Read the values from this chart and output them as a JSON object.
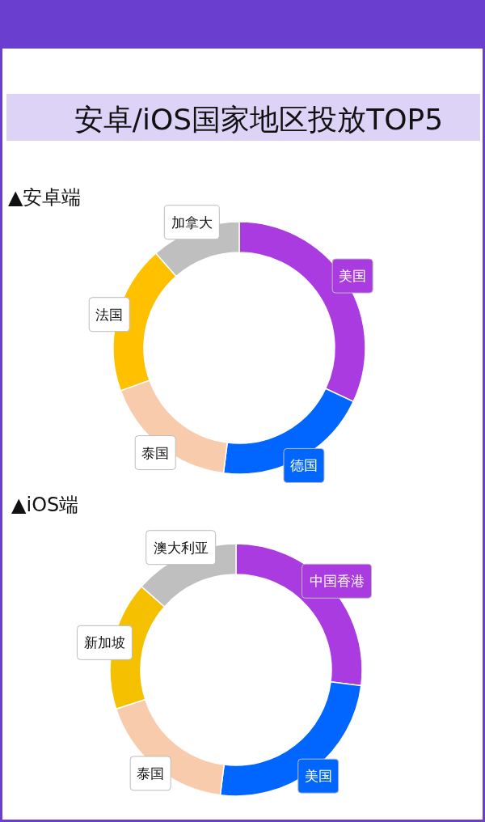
{
  "chart_data": [
    {
      "type": "donut",
      "title": "安卓/iOS国家地区投放TOP5",
      "subtitle": "▲安卓端",
      "categories": [
        "美国",
        "德国",
        "泰国",
        "法国",
        "加拿大"
      ],
      "values": [
        32,
        20,
        17.5,
        19,
        11.5
      ],
      "colors": [
        "#a93be0",
        "#0066ff",
        "#f8cbad",
        "#ffc000",
        "#bfbfbf"
      ]
    },
    {
      "type": "donut",
      "title": "▲iOS端",
      "categories": [
        "中国香港",
        "美国",
        "泰国",
        "新加坡",
        "澳大利亚"
      ],
      "values": [
        27,
        25,
        18,
        16.5,
        13.5
      ],
      "colors": [
        "#a93be0",
        "#0066ff",
        "#f8cbad",
        "#f5c000",
        "#bfbfbf"
      ]
    }
  ]
}
